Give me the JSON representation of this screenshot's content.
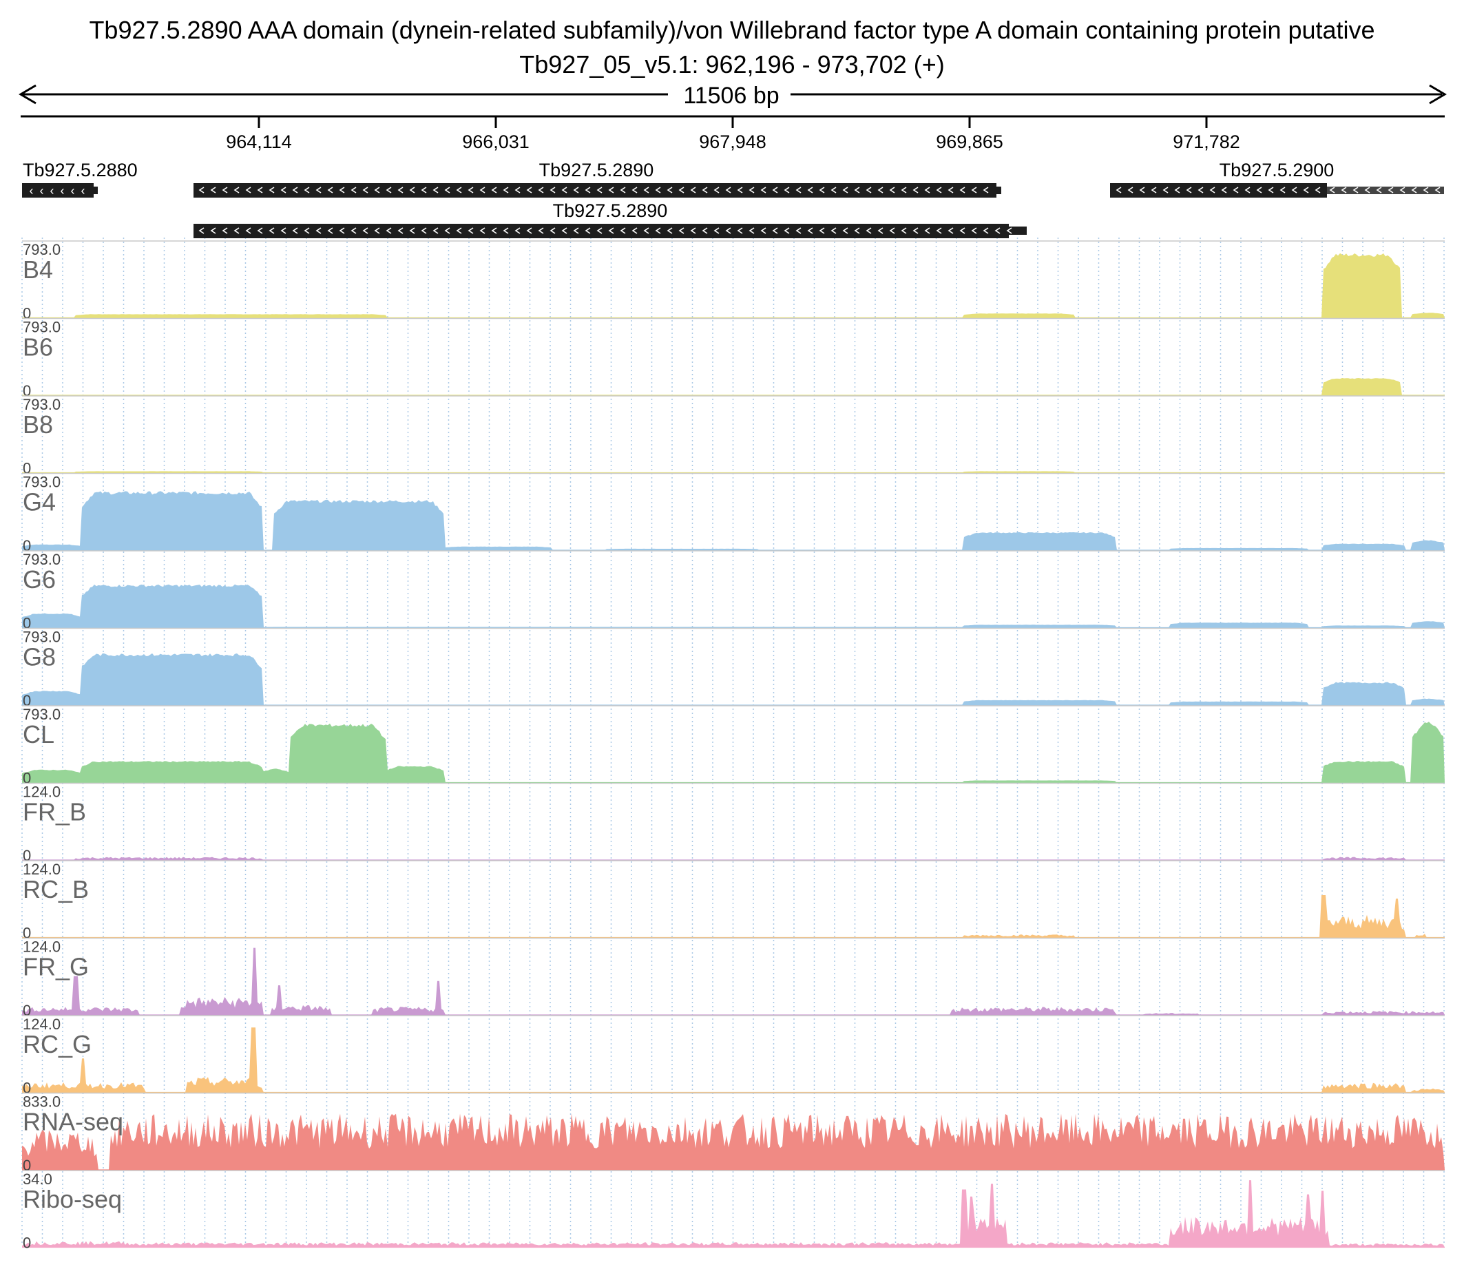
{
  "header": {
    "title": "Tb927.5.2890  AAA domain (dynein-related subfamily)/von Willebrand factor type A domain containing protein  putative",
    "locus": "Tb927_05_v5.1: 962,196 - 973,702 (+)"
  },
  "ruler": {
    "span_label": "11506 bp",
    "ticks": [
      "964,114",
      "966,031",
      "967,948",
      "969,865",
      "971,782"
    ]
  },
  "genes": [
    {
      "label": "Tb927.5.2880",
      "strand": "-"
    },
    {
      "label": "Tb927.5.2890",
      "strand": "-"
    },
    {
      "label": "Tb927.5.2890",
      "strand": "-"
    },
    {
      "label": "Tb927.5.2900",
      "strand": "-"
    }
  ],
  "tracks": [
    {
      "name": "B4",
      "max": "793.0",
      "min": "0",
      "color": "#e6e07a"
    },
    {
      "name": "B6",
      "max": "793.0",
      "min": "0",
      "color": "#e6e07a"
    },
    {
      "name": "B8",
      "max": "793.0",
      "min": "0",
      "color": "#e6e07a"
    },
    {
      "name": "G4",
      "max": "793.0",
      "min": "0",
      "color": "#9dc8e8"
    },
    {
      "name": "G6",
      "max": "793.0",
      "min": "0",
      "color": "#9dc8e8"
    },
    {
      "name": "G8",
      "max": "793.0",
      "min": "0",
      "color": "#9dc8e8"
    },
    {
      "name": "CL",
      "max": "793.0",
      "min": "0",
      "color": "#97d597"
    },
    {
      "name": "FR_B",
      "max": "124.0",
      "min": "0",
      "color": "#c99ad1"
    },
    {
      "name": "RC_B",
      "max": "124.0",
      "min": "0",
      "color": "#f9c37c"
    },
    {
      "name": "FR_G",
      "max": "124.0",
      "min": "0",
      "color": "#c99ad1"
    },
    {
      "name": "RC_G",
      "max": "124.0",
      "min": "0",
      "color": "#f9c37c"
    },
    {
      "name": "RNA-seq",
      "max": "833.0",
      "min": "0",
      "color": "#f08a84"
    },
    {
      "name": "Ribo-seq",
      "max": "34.0",
      "min": "0",
      "color": "#f4a7c8"
    }
  ],
  "colors": {
    "grid": "#a9c8e6",
    "gene": "#1e1e1e",
    "separator": "#c9c9c9"
  }
}
